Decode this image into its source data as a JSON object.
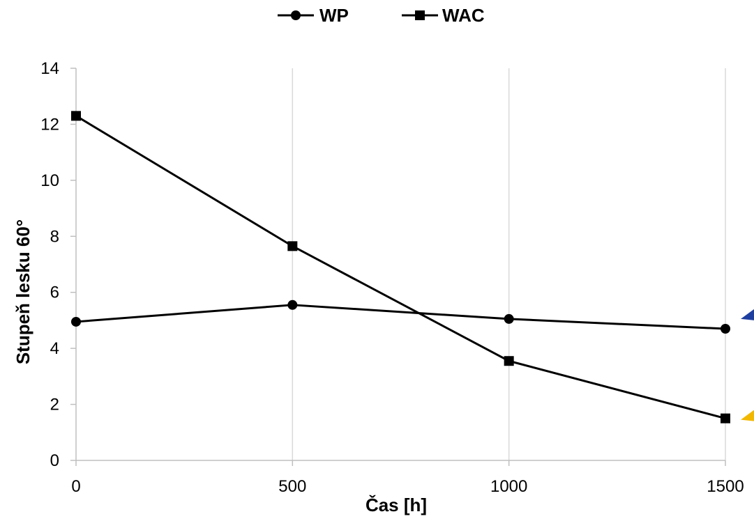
{
  "chart_data": {
    "type": "line",
    "title": "",
    "xlabel": "Čas [h]",
    "ylabel": "Stupeň lesku 60°",
    "x": [
      0,
      500,
      1000,
      1500
    ],
    "xticks": [
      "0",
      "500",
      "1000",
      "1500"
    ],
    "yticks": [
      "0",
      "2",
      "4",
      "6",
      "8",
      "10",
      "12",
      "14"
    ],
    "xlim": [
      0,
      1500
    ],
    "ylim": [
      0,
      14
    ],
    "grid": "vertical",
    "legend": "top-center",
    "series": [
      {
        "name": "WP",
        "marker": "circle",
        "color": "#000000",
        "values": [
          4.95,
          5.55,
          5.05,
          4.7
        ]
      },
      {
        "name": "WAC",
        "marker": "square",
        "color": "#000000",
        "values": [
          12.3,
          7.65,
          3.55,
          1.5
        ]
      }
    ],
    "edge_arrows": [
      {
        "color": "#1f3fa0",
        "y": 5.2
      },
      {
        "color": "#f2b800",
        "y": 1.6
      }
    ]
  }
}
